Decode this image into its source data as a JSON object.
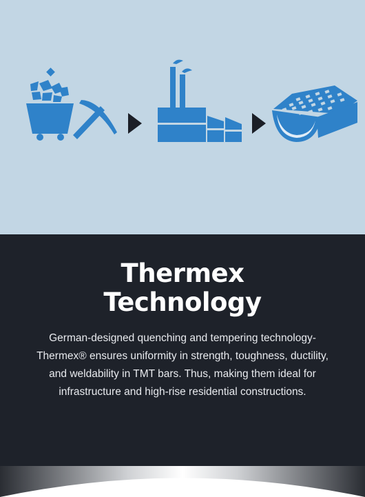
{
  "colors": {
    "illustration_bg": "#c2d6e4",
    "icon_blue": "#2f82c9",
    "arrow": "#1b1f27",
    "panel_bg": "#1e222a",
    "text": "#ffffff"
  },
  "illustration": {
    "steps": [
      {
        "icon": "mining-cart-pickaxe-icon"
      },
      {
        "icon": "steel-plant-icon"
      },
      {
        "icon": "tmt-bar-cross-section-icon"
      }
    ],
    "arrow_icon": "triangle-arrow-right-icon"
  },
  "card": {
    "title_line1": "Thermex",
    "title_line2": "Technology",
    "description": "German-designed quenching and tempering technology- Thermex® ensures uniformity in strength, toughness, ductility, and weldability in TMT bars. Thus, making them ideal for infrastructure and high-rise residential constructions."
  }
}
